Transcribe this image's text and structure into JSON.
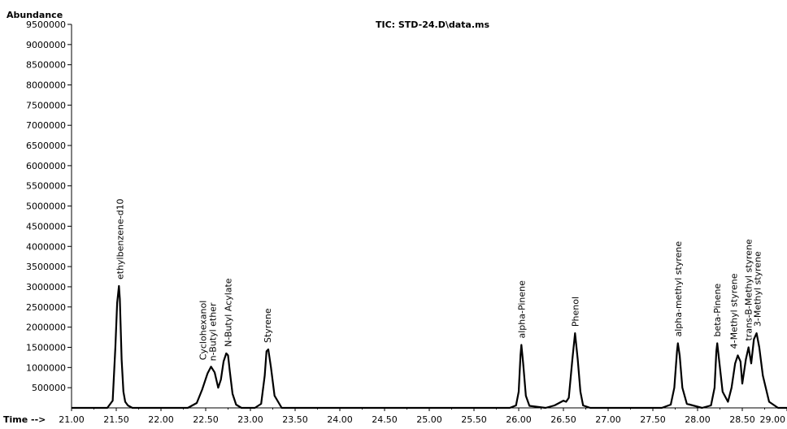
{
  "chart_data": {
    "type": "line",
    "title": "TIC: STD-24.D\\data.ms",
    "ylabel": "Abundance",
    "xlabel": "Time -->",
    "xlim": [
      21.0,
      29.0
    ],
    "ylim": [
      0,
      9500000
    ],
    "x_ticks": [
      "21.00",
      "21.50",
      "22.00",
      "22.50",
      "23.00",
      "23.50",
      "24.00",
      "24.50",
      "25.00",
      "25.50",
      "26.00",
      "26.50",
      "27.00",
      "27.50",
      "28.00",
      "28.50",
      "29.00"
    ],
    "y_ticks": [
      "500000",
      "1000000",
      "1500000",
      "2000000",
      "2500000",
      "3000000",
      "3500000",
      "4000000",
      "4500000",
      "5000000",
      "5500000",
      "6000000",
      "6500000",
      "7000000",
      "7500000",
      "8000000",
      "8500000",
      "9000000",
      "9500000"
    ],
    "grid": false,
    "peaks": [
      {
        "label": "ethylbenzene-d10",
        "time": 21.54,
        "abundance": 3020000
      },
      {
        "label": "Cyclohexanol",
        "time": 22.56,
        "abundance": 1020000
      },
      {
        "label": "n-Butyl ether",
        "time": 22.57,
        "abundance": 1000000
      },
      {
        "label": "N-Butyl Acylate",
        "time": 22.75,
        "abundance": 1350000
      },
      {
        "label": "Styrene",
        "time": 23.19,
        "abundance": 1450000
      },
      {
        "label": "alpha-Pinene",
        "time": 26.03,
        "abundance": 1560000
      },
      {
        "label": "Phenol",
        "time": 26.63,
        "abundance": 1850000
      },
      {
        "label": "alpha-methyl styrene",
        "time": 27.78,
        "abundance": 1600000
      },
      {
        "label": "beta-Pinene",
        "time": 28.22,
        "abundance": 1600000
      },
      {
        "label": "4-Methyl styrene",
        "time": 28.45,
        "abundance": 1300000
      },
      {
        "label": "trans-B-Methyl styrene",
        "time": 28.57,
        "abundance": 1500000
      },
      {
        "label": "3-Methyl styrene",
        "time": 28.66,
        "abundance": 1850000
      }
    ],
    "series": [
      {
        "x": [
          21.0,
          21.4,
          21.46,
          21.49,
          21.51,
          21.53,
          21.54,
          21.56,
          21.58,
          21.6,
          21.63,
          21.68,
          21.8,
          22.3,
          22.4,
          22.46,
          22.52,
          22.56,
          22.6,
          22.64,
          22.67,
          22.7,
          22.73,
          22.75,
          22.77,
          22.8,
          22.84,
          22.9,
          23.05,
          23.12,
          23.16,
          23.18,
          23.2,
          23.23,
          23.27,
          23.35,
          23.6,
          25.9,
          25.97,
          26.0,
          26.02,
          26.03,
          26.05,
          26.08,
          26.12,
          26.3,
          26.4,
          26.46,
          26.5,
          26.53,
          26.56,
          26.6,
          26.63,
          26.66,
          26.69,
          26.72,
          26.8,
          27.6,
          27.7,
          27.74,
          27.77,
          27.78,
          27.8,
          27.83,
          27.88,
          28.05,
          28.15,
          28.19,
          28.21,
          28.22,
          28.24,
          28.28,
          28.34,
          28.38,
          28.42,
          28.45,
          28.48,
          28.5,
          28.54,
          28.57,
          28.6,
          28.63,
          28.66,
          28.69,
          28.73,
          28.8,
          28.9,
          29.0
        ],
        "values": [
          0,
          0,
          180000,
          1500000,
          2600000,
          3020000,
          2700000,
          1200000,
          400000,
          150000,
          60000,
          0,
          0,
          0,
          120000,
          450000,
          850000,
          1020000,
          880000,
          500000,
          700000,
          1150000,
          1350000,
          1300000,
          900000,
          350000,
          80000,
          0,
          0,
          100000,
          800000,
          1400000,
          1450000,
          1000000,
          300000,
          0,
          0,
          0,
          60000,
          400000,
          1300000,
          1560000,
          1100000,
          300000,
          50000,
          0,
          60000,
          130000,
          180000,
          150000,
          250000,
          1200000,
          1850000,
          1200000,
          400000,
          60000,
          0,
          0,
          80000,
          500000,
          1400000,
          1600000,
          1300000,
          500000,
          100000,
          0,
          60000,
          500000,
          1400000,
          1600000,
          1200000,
          400000,
          150000,
          500000,
          1100000,
          1300000,
          1150000,
          600000,
          1200000,
          1500000,
          1100000,
          1700000,
          1850000,
          1500000,
          800000,
          150000,
          0,
          0
        ]
      }
    ]
  }
}
